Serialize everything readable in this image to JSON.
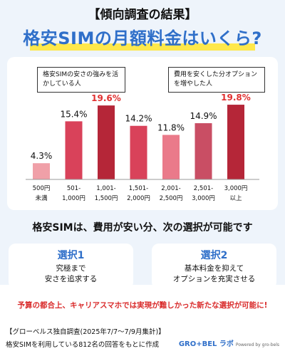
{
  "header": {
    "survey_label": "【傾向調査の結果】",
    "title": "格安SIMの月額料金はいくら?"
  },
  "callouts": {
    "left": "格安SIMの安さの強みを活かしている人",
    "right": "費用を安くした分オプションを増やした人"
  },
  "chart_data": {
    "type": "bar",
    "title": "",
    "xlabel": "",
    "ylabel": "",
    "ylim": [
      0,
      20
    ],
    "grid": false,
    "categories": [
      [
        "500円",
        "未満"
      ],
      [
        "501-",
        "1,000円"
      ],
      [
        "1,001-",
        "1,500円"
      ],
      [
        "1,501-",
        "2,000円"
      ],
      [
        "2,001-",
        "2,500円"
      ],
      [
        "2,501-",
        "3,000円"
      ],
      [
        "3,000円",
        "以上"
      ]
    ],
    "values": [
      4.3,
      15.4,
      19.6,
      14.2,
      11.8,
      14.9,
      19.8
    ],
    "data_labels": [
      "4.3%",
      "15.4%",
      "19.6%",
      "14.2%",
      "11.8%",
      "14.9%",
      "19.8%"
    ],
    "bar_colors": [
      "#f0a0a8",
      "#d9425a",
      "#b52638",
      "#d9425a",
      "#ea7a8a",
      "#c94e64",
      "#b52638"
    ],
    "label_colors": [
      "#111111",
      "#111111",
      "#e03030",
      "#111111",
      "#111111",
      "#111111",
      "#e03030"
    ]
  },
  "summary": {
    "text": "格安SIMは、費用が安い分、次の選択が可能です"
  },
  "options": [
    {
      "title": "選択1",
      "lines": [
        "究極まで",
        "安さを追求する"
      ]
    },
    {
      "title": "選択2",
      "lines": [
        "基本料金を抑えて",
        "オプションを充実させる"
      ]
    }
  ],
  "conclusion": "予算の都合上、キャリアスマホでは実現が難しかった新たな選択が可能に!",
  "footer": {
    "line1": "【グローベルス独自調査(2025年7/7〜7/9月集計)】",
    "line2": "格安SIMを利用している812名の回答をもとに作成",
    "brand": "GRO+BEL ラボ",
    "brand_sub": "Powered by gro-bels"
  },
  "colors": {
    "accent": "#2f6fc9",
    "highlight": "#ffe84a",
    "alert": "#d92b2b"
  }
}
